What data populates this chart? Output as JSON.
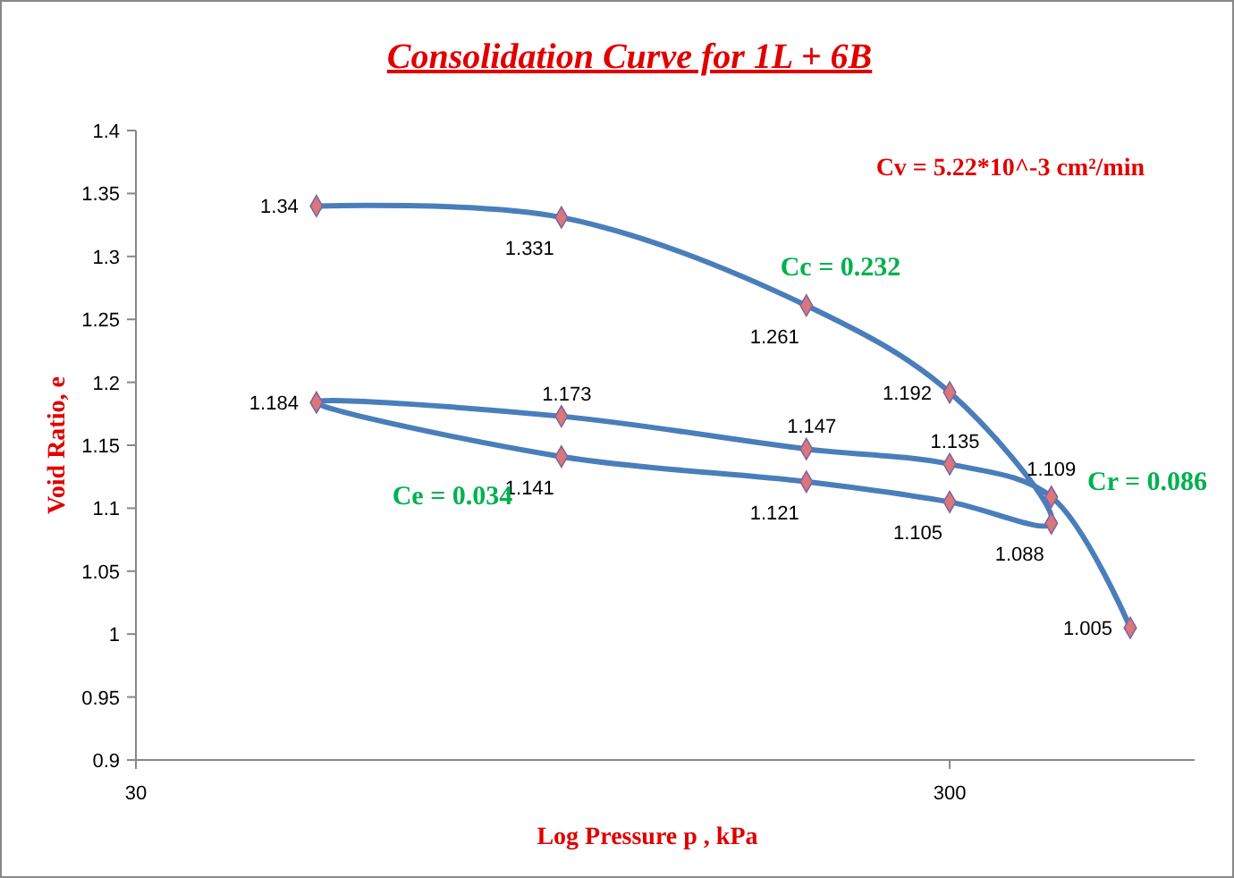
{
  "chart_data": {
    "type": "line",
    "title": "Consolidation Curve for  1L + 6B",
    "xlabel": "Log Pressure p , kPa",
    "ylabel": "Void Ratio, e",
    "x": [
      50,
      100,
      200,
      300,
      400,
      300,
      200,
      100,
      50,
      100,
      200,
      300,
      400,
      500
    ],
    "series": [
      {
        "color": "#4a7ebb",
        "values": [
          1.34,
          1.331,
          1.261,
          1.192,
          1.088,
          1.105,
          1.121,
          1.141,
          1.184,
          1.173,
          1.147,
          1.135,
          1.109,
          1.005
        ],
        "value_labels": [
          "1.34",
          "1.331",
          "1.261",
          "1.192",
          "1.088",
          "1.105",
          "1.121",
          "1.141",
          "1.184",
          "1.173",
          "1.147",
          "1.135",
          "1.109",
          "1.005"
        ]
      }
    ],
    "log": "x",
    "xlim": [
      30,
      600
    ],
    "xticks": [
      30,
      300
    ],
    "ylim": [
      0.9,
      1.4
    ],
    "yticks": [
      0.9,
      0.95,
      1,
      1.05,
      1.1,
      1.15,
      1.2,
      1.25,
      1.3,
      1.35,
      1.4
    ],
    "grid": false,
    "marker": "diamond",
    "line_style": "solid",
    "annotations": [
      "Cv = 5.22*10^-3 cm²/min",
      "Cc = 0.232",
      "Ce = 0.034",
      "Cr = 0.086"
    ]
  }
}
